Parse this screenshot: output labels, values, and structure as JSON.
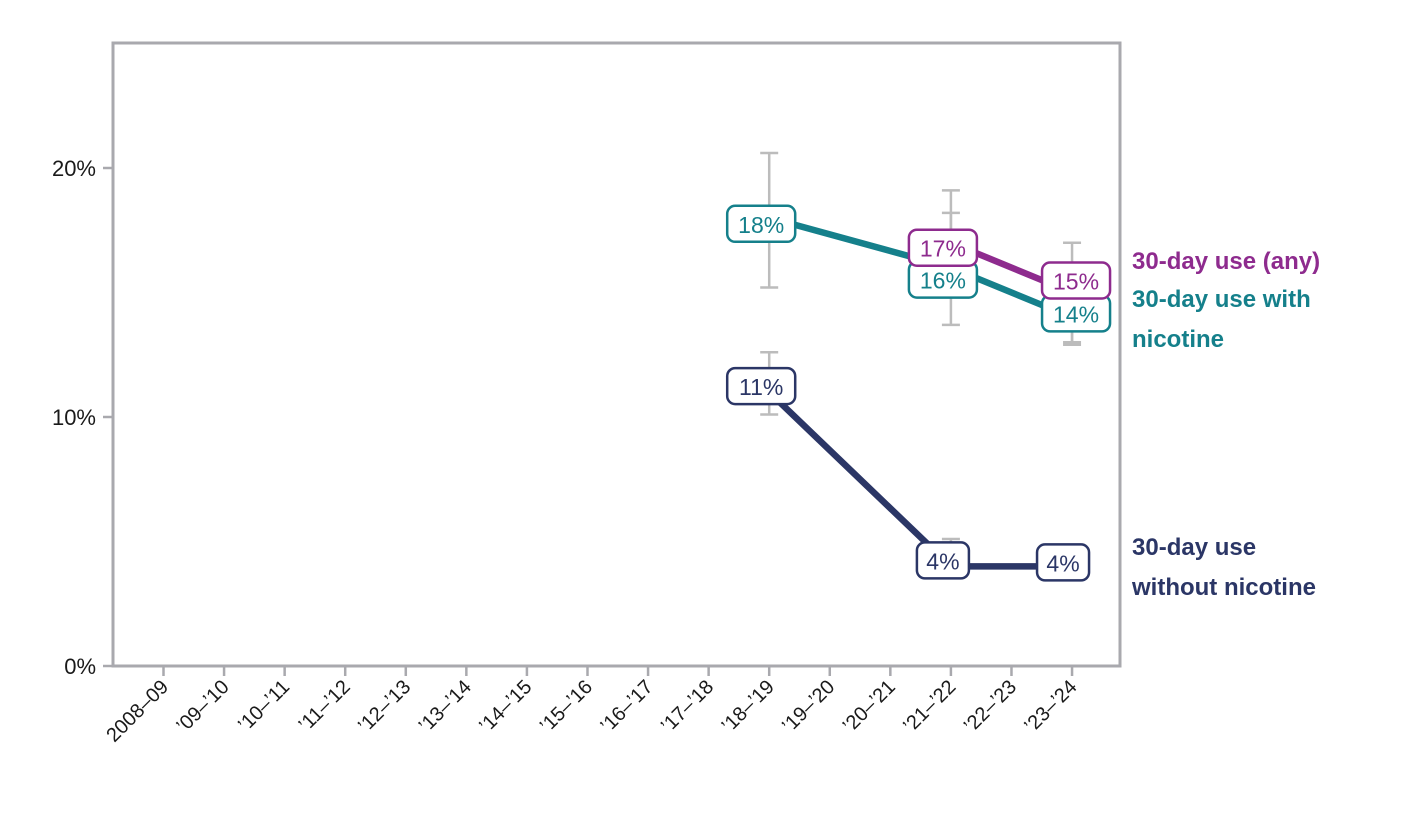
{
  "chart_data": {
    "type": "line",
    "title": "",
    "xlabel": "",
    "ylabel": "",
    "x_categories": [
      "2008–09",
      "’09–’10",
      "’10–’11",
      "’11–’12",
      "’12–’13",
      "’13–’14",
      "’14–’15",
      "’15–’16",
      "’16–’17",
      "’17–’18",
      "’18–’19",
      "’19–’20",
      "’20–’21",
      "’21–’22",
      "’22–’23",
      "’23–’24"
    ],
    "x_tick_rotation": 45,
    "y_ticks": [
      {
        "value": 0,
        "label": "0%"
      },
      {
        "value": 10,
        "label": "10%"
      },
      {
        "value": 20,
        "label": "20%"
      }
    ],
    "y_range": [
      0,
      25
    ],
    "grid": false,
    "legend_position": "right-annotations",
    "axis_color": "#a9a9ae",
    "error_bar_color": "#bcbcbc",
    "tick_label_color": "#1a1a1a",
    "background_color": "#ffffff",
    "series": [
      {
        "name": "30-day use (any)",
        "color": "#8e2b8e",
        "points": [
          {
            "category": "’21–’22",
            "x_index": 13,
            "value": 17,
            "label": "17%",
            "ci_low": 15.0,
            "ci_high": 19.1,
            "label_dx": -8,
            "label_dy": 5
          },
          {
            "category": "’23–’24",
            "x_index": 15,
            "value": 15,
            "label": "15%",
            "ci_low": 13.0,
            "ci_high": 17.0,
            "label_dx": 4,
            "label_dy": -12
          }
        ]
      },
      {
        "name": "30-day use with nicotine",
        "color": "#15808b",
        "points": [
          {
            "category": "’18–’19",
            "x_index": 10,
            "value": 18,
            "label": "18%",
            "ci_low": 15.2,
            "ci_high": 20.6,
            "label_dx": -8,
            "label_dy": 6
          },
          {
            "category": "’21–’22",
            "x_index": 13,
            "value": 16,
            "label": "16%",
            "ci_low": 13.7,
            "ci_high": 18.2,
            "label_dx": -8,
            "label_dy": 12
          },
          {
            "category": "’23–’24",
            "x_index": 15,
            "value": 14,
            "label": "14%",
            "ci_low": 12.9,
            "ci_high": 15.1,
            "label_dx": 4,
            "label_dy": -4
          }
        ]
      },
      {
        "name": "30-day use without nicotine",
        "color": "#2b3666",
        "points": [
          {
            "category": "’18–’19",
            "x_index": 10,
            "value": 11,
            "label": "11%",
            "ci_low": 10.1,
            "ci_high": 12.6,
            "label_dx": -8,
            "label_dy": -6
          },
          {
            "category": "’21–’22",
            "x_index": 13,
            "value": 4,
            "label": "4%",
            "ci_low": 3.6,
            "ci_high": 5.1,
            "label_dx": -8,
            "label_dy": -6
          },
          {
            "category": "’23–’24",
            "x_index": 15,
            "value": 4,
            "label": "4%",
            "ci_low": 3.6,
            "ci_high": 4.7,
            "label_dx": -9,
            "label_dy": -4
          }
        ]
      }
    ],
    "annotations": [
      {
        "lines": [
          "30-day use (any)"
        ],
        "color": "#8e2b8e"
      },
      {
        "lines": [
          "30-day use with",
          "nicotine"
        ],
        "color": "#15808b"
      },
      {
        "lines": [
          "30-day use",
          "without nicotine"
        ],
        "color": "#2b3666"
      }
    ]
  }
}
